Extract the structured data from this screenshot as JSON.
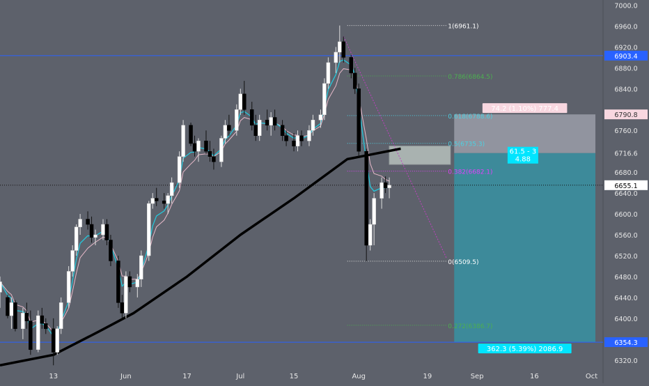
{
  "colors": {
    "background": "#5d616b",
    "axis_text": "#e8e8e8",
    "horizontal_line": "#2962ff",
    "candle_up": "#ffffff",
    "candle_down": "#000000",
    "ema_fast": "#26c6da",
    "ema_slow": "#e6b8c8",
    "ma_long": "#000000",
    "fib_line": "#e0e0e0",
    "fib_green": "#4caf50",
    "fib_cyan": "#4dd0e1",
    "fib_magenta": "#e040fb",
    "trend_line": "#c040c0",
    "box_fill": "#e8f5e9",
    "stop_zone": "#9a9ea8",
    "target_zone": "#3a8fa0",
    "label_cyan": "#00e5ff",
    "label_pink": "#f8d7e0"
  },
  "chart_data": {
    "type": "candlestick",
    "instrument_note": "",
    "x_axis": {
      "ticks": [
        "13",
        "Jun",
        "17",
        "Jul",
        "15",
        "Aug",
        "19",
        "Sep",
        "16",
        "Oct"
      ],
      "tick_dates": [
        "2018-05-13",
        "2018-06-01",
        "2018-06-17",
        "2018-07-01",
        "2018-07-15",
        "2018-08-01",
        "2018-08-19",
        "2018-09-01",
        "2018-09-16",
        "2018-10-01"
      ],
      "range": [
        "2018-04-29",
        "2018-10-04"
      ]
    },
    "y_axis": {
      "ticks": [
        6320.0,
        6360.0,
        6400.0,
        6440.0,
        6480.0,
        6520.0,
        6560.0,
        6600.0,
        6640.0,
        6680.0,
        6716.6,
        6760.0,
        6800.0,
        6840.0,
        6880.0,
        6920.0,
        6960.0,
        7000.0
      ],
      "range": [
        6305,
        7010
      ],
      "hidden_ticks": [
        6720,
        6800
      ]
    },
    "price_labels": [
      {
        "value": 6903.4,
        "text": "6903.4",
        "style": "blue"
      },
      {
        "value": 6790.8,
        "text": "6790.8",
        "style": "pink"
      },
      {
        "value": 6716.6,
        "text": "6716.6",
        "style": "plain"
      },
      {
        "value": 6655.1,
        "text": "6655.1",
        "style": "white"
      },
      {
        "value": 6354.3,
        "text": "6354.3",
        "style": "blue"
      }
    ],
    "horizontal_lines": [
      {
        "value": 6903.4,
        "style": "solid-blue"
      },
      {
        "value": 6354.3,
        "style": "solid-blue"
      },
      {
        "value": 6655.1,
        "style": "dotted-black"
      }
    ],
    "fibonacci": [
      {
        "label": "1(6961.1)",
        "value": 6961.1,
        "color_key": "fib_line"
      },
      {
        "label": "0.786(6864.5)",
        "value": 6864.5,
        "color_key": "fib_green"
      },
      {
        "label": "0.618(6788.6)",
        "value": 6788.6,
        "color_key": "fib_cyan"
      },
      {
        "label": "0.5(6735.3)",
        "value": 6735.3,
        "color_key": "fib_cyan"
      },
      {
        "label": "0.382(6682.1)",
        "value": 6682.1,
        "color_key": "fib_magenta"
      },
      {
        "label": "0(6509.5)",
        "value": 6509.5,
        "color_key": "fib_line"
      },
      {
        "label": "0.272(6386.7)",
        "value": 6386.7,
        "color_key": "fib_green"
      }
    ],
    "fib_range_dates": [
      "2018-07-29",
      "2018-08-24"
    ],
    "candles": [
      {
        "d": "2018-04-29",
        "o": 6450,
        "h": 6480,
        "l": 6420,
        "c": 6470
      },
      {
        "d": "2018-05-01",
        "o": 6440,
        "h": 6445,
        "l": 6400,
        "c": 6405
      },
      {
        "d": "2018-05-02",
        "o": 6405,
        "h": 6440,
        "l": 6380,
        "c": 6430
      },
      {
        "d": "2018-05-03",
        "o": 6430,
        "h": 6435,
        "l": 6375,
        "c": 6380
      },
      {
        "d": "2018-05-05",
        "o": 6380,
        "h": 6420,
        "l": 6360,
        "c": 6410
      },
      {
        "d": "2018-05-06",
        "o": 6410,
        "h": 6430,
        "l": 6380,
        "c": 6395
      },
      {
        "d": "2018-05-07",
        "o": 6395,
        "h": 6415,
        "l": 6330,
        "c": 6340
      },
      {
        "d": "2018-05-09",
        "o": 6340,
        "h": 6415,
        "l": 6335,
        "c": 6405
      },
      {
        "d": "2018-05-10",
        "o": 6405,
        "h": 6420,
        "l": 6380,
        "c": 6390
      },
      {
        "d": "2018-05-11",
        "o": 6390,
        "h": 6400,
        "l": 6370,
        "c": 6380
      },
      {
        "d": "2018-05-13",
        "o": 6380,
        "h": 6400,
        "l": 6310,
        "c": 6335
      },
      {
        "d": "2018-05-14",
        "o": 6335,
        "h": 6385,
        "l": 6330,
        "c": 6380
      },
      {
        "d": "2018-05-15",
        "o": 6380,
        "h": 6440,
        "l": 6370,
        "c": 6430
      },
      {
        "d": "2018-05-17",
        "o": 6430,
        "h": 6500,
        "l": 6420,
        "c": 6490
      },
      {
        "d": "2018-05-18",
        "o": 6490,
        "h": 6540,
        "l": 6480,
        "c": 6530
      },
      {
        "d": "2018-05-19",
        "o": 6530,
        "h": 6580,
        "l": 6520,
        "c": 6575
      },
      {
        "d": "2018-05-20",
        "o": 6575,
        "h": 6600,
        "l": 6560,
        "c": 6590
      },
      {
        "d": "2018-05-22",
        "o": 6590,
        "h": 6605,
        "l": 6570,
        "c": 6580
      },
      {
        "d": "2018-05-23",
        "o": 6580,
        "h": 6595,
        "l": 6545,
        "c": 6555
      },
      {
        "d": "2018-05-24",
        "o": 6555,
        "h": 6570,
        "l": 6540,
        "c": 6560
      },
      {
        "d": "2018-05-26",
        "o": 6560,
        "h": 6590,
        "l": 6550,
        "c": 6580
      },
      {
        "d": "2018-05-27",
        "o": 6580,
        "h": 6590,
        "l": 6540,
        "c": 6550
      },
      {
        "d": "2018-05-28",
        "o": 6550,
        "h": 6560,
        "l": 6500,
        "c": 6510
      },
      {
        "d": "2018-05-30",
        "o": 6510,
        "h": 6520,
        "l": 6420,
        "c": 6430
      },
      {
        "d": "2018-05-31",
        "o": 6430,
        "h": 6445,
        "l": 6400,
        "c": 6410
      },
      {
        "d": "2018-06-01",
        "o": 6410,
        "h": 6490,
        "l": 6400,
        "c": 6480
      },
      {
        "d": "2018-06-02",
        "o": 6480,
        "h": 6490,
        "l": 6450,
        "c": 6460
      },
      {
        "d": "2018-06-04",
        "o": 6460,
        "h": 6485,
        "l": 6440,
        "c": 6475
      },
      {
        "d": "2018-06-05",
        "o": 6475,
        "h": 6530,
        "l": 6460,
        "c": 6520
      },
      {
        "d": "2018-06-07",
        "o": 6520,
        "h": 6625,
        "l": 6510,
        "c": 6620
      },
      {
        "d": "2018-06-08",
        "o": 6620,
        "h": 6640,
        "l": 6610,
        "c": 6630
      },
      {
        "d": "2018-06-09",
        "o": 6630,
        "h": 6650,
        "l": 6615,
        "c": 6625
      },
      {
        "d": "2018-06-11",
        "o": 6625,
        "h": 6640,
        "l": 6610,
        "c": 6620
      },
      {
        "d": "2018-06-12",
        "o": 6620,
        "h": 6640,
        "l": 6600,
        "c": 6635
      },
      {
        "d": "2018-06-13",
        "o": 6635,
        "h": 6670,
        "l": 6620,
        "c": 6660
      },
      {
        "d": "2018-06-15",
        "o": 6660,
        "h": 6720,
        "l": 6650,
        "c": 6710
      },
      {
        "d": "2018-06-16",
        "o": 6710,
        "h": 6780,
        "l": 6700,
        "c": 6770
      },
      {
        "d": "2018-06-18",
        "o": 6770,
        "h": 6775,
        "l": 6730,
        "c": 6735
      },
      {
        "d": "2018-06-19",
        "o": 6735,
        "h": 6750,
        "l": 6710,
        "c": 6720
      },
      {
        "d": "2018-06-20",
        "o": 6720,
        "h": 6745,
        "l": 6700,
        "c": 6740
      },
      {
        "d": "2018-06-22",
        "o": 6740,
        "h": 6760,
        "l": 6715,
        "c": 6720
      },
      {
        "d": "2018-06-23",
        "o": 6720,
        "h": 6740,
        "l": 6700,
        "c": 6710
      },
      {
        "d": "2018-06-24",
        "o": 6710,
        "h": 6725,
        "l": 6685,
        "c": 6700
      },
      {
        "d": "2018-06-26",
        "o": 6700,
        "h": 6750,
        "l": 6690,
        "c": 6745
      },
      {
        "d": "2018-06-27",
        "o": 6745,
        "h": 6780,
        "l": 6735,
        "c": 6770
      },
      {
        "d": "2018-06-28",
        "o": 6770,
        "h": 6790,
        "l": 6750,
        "c": 6760
      },
      {
        "d": "2018-06-30",
        "o": 6760,
        "h": 6810,
        "l": 6750,
        "c": 6800
      },
      {
        "d": "2018-07-01",
        "o": 6800,
        "h": 6840,
        "l": 6790,
        "c": 6830
      },
      {
        "d": "2018-07-02",
        "o": 6830,
        "h": 6855,
        "l": 6790,
        "c": 6800
      },
      {
        "d": "2018-07-04",
        "o": 6800,
        "h": 6815,
        "l": 6760,
        "c": 6770
      },
      {
        "d": "2018-07-05",
        "o": 6770,
        "h": 6790,
        "l": 6740,
        "c": 6750
      },
      {
        "d": "2018-07-06",
        "o": 6750,
        "h": 6790,
        "l": 6740,
        "c": 6780
      },
      {
        "d": "2018-07-08",
        "o": 6780,
        "h": 6800,
        "l": 6760,
        "c": 6770
      },
      {
        "d": "2018-07-09",
        "o": 6770,
        "h": 6795,
        "l": 6750,
        "c": 6785
      },
      {
        "d": "2018-07-10",
        "o": 6785,
        "h": 6800,
        "l": 6760,
        "c": 6770
      },
      {
        "d": "2018-07-12",
        "o": 6770,
        "h": 6780,
        "l": 6740,
        "c": 6750
      },
      {
        "d": "2018-07-13",
        "o": 6750,
        "h": 6760,
        "l": 6730,
        "c": 6740
      },
      {
        "d": "2018-07-15",
        "o": 6740,
        "h": 6755,
        "l": 6720,
        "c": 6730
      },
      {
        "d": "2018-07-16",
        "o": 6730,
        "h": 6760,
        "l": 6720,
        "c": 6750
      },
      {
        "d": "2018-07-17",
        "o": 6750,
        "h": 6760,
        "l": 6730,
        "c": 6740
      },
      {
        "d": "2018-07-19",
        "o": 6740,
        "h": 6770,
        "l": 6730,
        "c": 6760
      },
      {
        "d": "2018-07-20",
        "o": 6760,
        "h": 6790,
        "l": 6750,
        "c": 6780
      },
      {
        "d": "2018-07-22",
        "o": 6780,
        "h": 6800,
        "l": 6765,
        "c": 6790
      },
      {
        "d": "2018-07-23",
        "o": 6790,
        "h": 6860,
        "l": 6780,
        "c": 6850
      },
      {
        "d": "2018-07-24",
        "o": 6850,
        "h": 6900,
        "l": 6840,
        "c": 6890
      },
      {
        "d": "2018-07-26",
        "o": 6890,
        "h": 6920,
        "l": 6870,
        "c": 6910
      },
      {
        "d": "2018-07-27",
        "o": 6910,
        "h": 6961.1,
        "l": 6890,
        "c": 6930
      },
      {
        "d": "2018-07-28",
        "o": 6930,
        "h": 6940,
        "l": 6890,
        "c": 6900
      },
      {
        "d": "2018-07-30",
        "o": 6900,
        "h": 6905,
        "l": 6860,
        "c": 6870
      },
      {
        "d": "2018-07-31",
        "o": 6870,
        "h": 6880,
        "l": 6830,
        "c": 6840
      },
      {
        "d": "2018-08-01",
        "o": 6840,
        "h": 6850,
        "l": 6710,
        "c": 6720
      },
      {
        "d": "2018-08-03",
        "o": 6720,
        "h": 6725,
        "l": 6509.5,
        "c": 6540
      },
      {
        "d": "2018-08-04",
        "o": 6540,
        "h": 6590,
        "l": 6530,
        "c": 6580
      },
      {
        "d": "2018-08-05",
        "o": 6580,
        "h": 6640,
        "l": 6540,
        "c": 6630
      },
      {
        "d": "2018-08-07",
        "o": 6630,
        "h": 6670,
        "l": 6610,
        "c": 6660
      },
      {
        "d": "2018-08-08",
        "o": 6660,
        "h": 6672,
        "l": 6640,
        "c": 6650
      },
      {
        "d": "2018-08-09",
        "o": 6650,
        "h": 6670,
        "l": 6630,
        "c": 6655.1
      }
    ],
    "ma_long": [
      {
        "d": "2018-04-29",
        "v": 6310
      },
      {
        "d": "2018-05-13",
        "v": 6330
      },
      {
        "d": "2018-05-25",
        "v": 6375
      },
      {
        "d": "2018-06-03",
        "v": 6410
      },
      {
        "d": "2018-06-17",
        "v": 6480
      },
      {
        "d": "2018-07-01",
        "v": 6560
      },
      {
        "d": "2018-07-15",
        "v": 6630
      },
      {
        "d": "2018-07-29",
        "v": 6705
      },
      {
        "d": "2018-08-12",
        "v": 6725
      }
    ],
    "box": {
      "from": "2018-08-09",
      "to": "2018-08-25",
      "top": 6730,
      "bottom": 6695
    },
    "trend_line": {
      "from_date": "2018-07-28",
      "from_value": 6940,
      "to_date": "2018-08-24",
      "to_value": 6515
    },
    "position": {
      "from": "2018-08-26",
      "to": "2018-10-02",
      "entry": 6716.6,
      "stop": 6790.8,
      "target": 6354.3,
      "stop_label": "74.2 (1.10%) 777.4",
      "ratio_label_1": "61.5 - 3",
      "ratio_label_2": "4.88",
      "target_label": "362.3 (5.39%) 2086.9"
    }
  }
}
